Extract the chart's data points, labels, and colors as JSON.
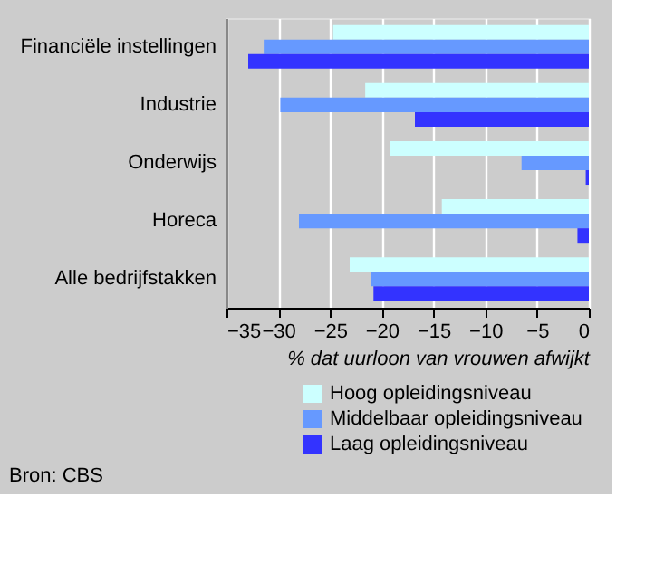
{
  "chart_data": {
    "type": "bar",
    "orientation": "horizontal",
    "xlabel": "% dat uurloon van vrouwen afwijkt",
    "categories": [
      "Financiële instellingen",
      "Industrie",
      "Onderwijs",
      "Horeca",
      "Alle bedrijfstakken"
    ],
    "series": [
      {
        "name": "Hoog opleidingsniveau",
        "color": "#ccffff",
        "values": [
          -24.7,
          -21.6,
          -19.2,
          -14.2,
          -23.1
        ]
      },
      {
        "name": "Middelbaar opleidingsniveau",
        "color": "#6699ff",
        "values": [
          -31.4,
          -29.8,
          -6.5,
          -28.0,
          -21.0
        ]
      },
      {
        "name": "Laag opleidingsniveau",
        "color": "#3333ff",
        "values": [
          -32.9,
          -16.8,
          -0.3,
          -1.1,
          -20.8
        ]
      }
    ],
    "xlim": [
      -35,
      0
    ],
    "xticks": [
      -35,
      -30,
      -25,
      -20,
      -15,
      -10,
      -5,
      0
    ],
    "grid": "x",
    "legend": "bottom right",
    "annotations": [
      "Bron: CBS"
    ]
  }
}
